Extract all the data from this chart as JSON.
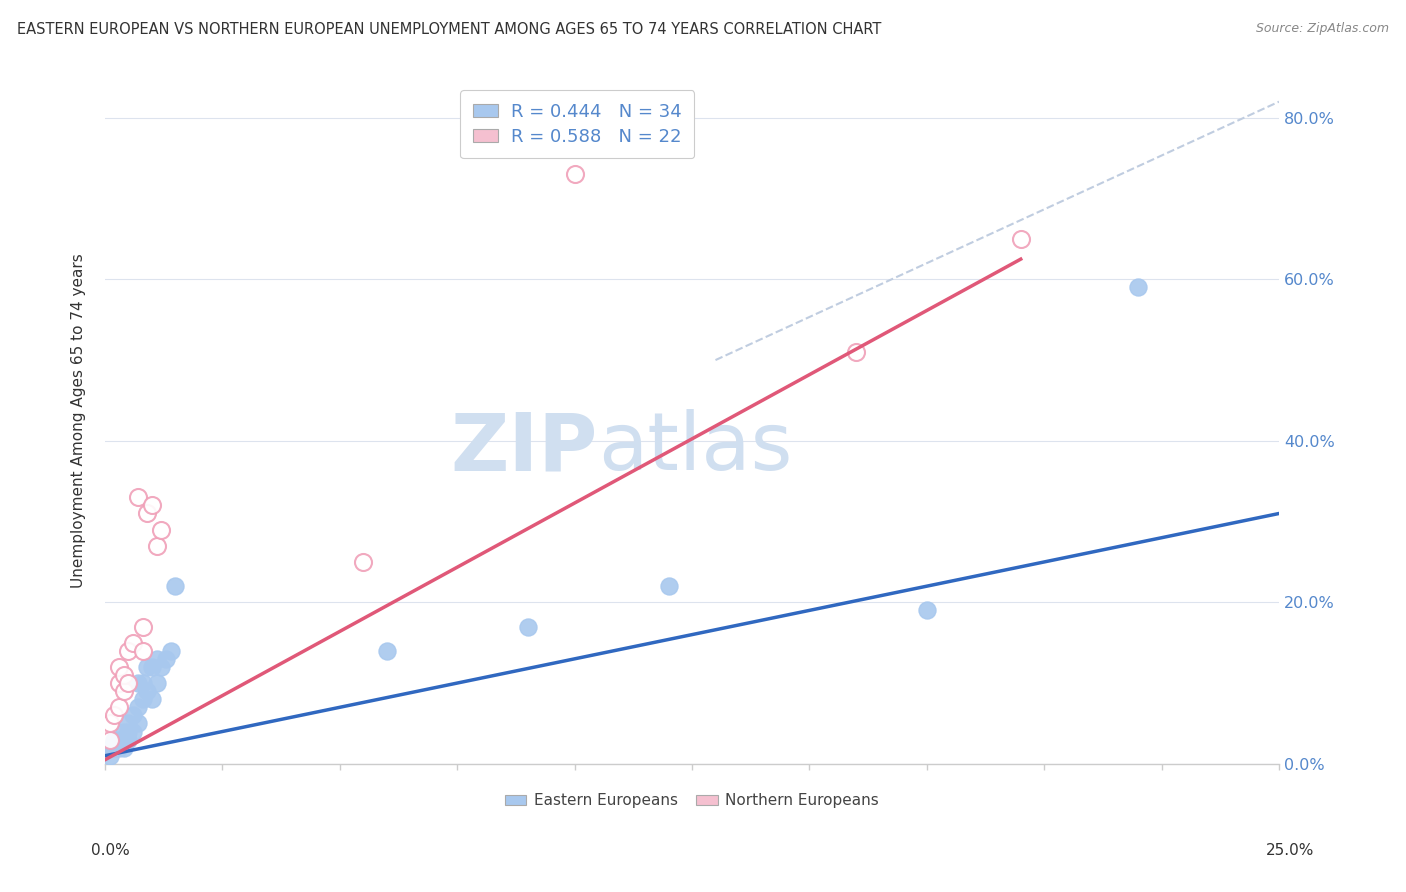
{
  "title": "EASTERN EUROPEAN VS NORTHERN EUROPEAN UNEMPLOYMENT AMONG AGES 65 TO 74 YEARS CORRELATION CHART",
  "source": "Source: ZipAtlas.com",
  "ylabel": "Unemployment Among Ages 65 to 74 years",
  "legend_blue_r": "R = 0.444",
  "legend_blue_n": "N = 34",
  "legend_pink_r": "R = 0.588",
  "legend_pink_n": "N = 22",
  "blue_fill_color": "#a8c8ee",
  "pink_fill_color": "#f5c0d0",
  "blue_edge_color": "#a8c8ee",
  "pink_edge_color": "#f0a0b8",
  "blue_line_color": "#3068c0",
  "pink_line_color": "#e05878",
  "watermark": "ZIPAtlas",
  "watermark_color": "#d0dff0",
  "blue_scatter_x": [
    0.001,
    0.001,
    0.002,
    0.002,
    0.003,
    0.003,
    0.004,
    0.004,
    0.004,
    0.005,
    0.005,
    0.005,
    0.006,
    0.006,
    0.007,
    0.007,
    0.007,
    0.008,
    0.008,
    0.009,
    0.009,
    0.01,
    0.01,
    0.011,
    0.011,
    0.012,
    0.013,
    0.014,
    0.015,
    0.06,
    0.09,
    0.12,
    0.175,
    0.22
  ],
  "blue_scatter_y": [
    0.01,
    0.02,
    0.02,
    0.03,
    0.02,
    0.03,
    0.02,
    0.03,
    0.04,
    0.03,
    0.04,
    0.05,
    0.04,
    0.06,
    0.05,
    0.07,
    0.1,
    0.08,
    0.1,
    0.09,
    0.12,
    0.08,
    0.12,
    0.1,
    0.13,
    0.12,
    0.13,
    0.14,
    0.22,
    0.14,
    0.17,
    0.22,
    0.19,
    0.59
  ],
  "pink_scatter_x": [
    0.001,
    0.001,
    0.002,
    0.003,
    0.003,
    0.003,
    0.004,
    0.004,
    0.005,
    0.005,
    0.006,
    0.007,
    0.008,
    0.008,
    0.009,
    0.01,
    0.011,
    0.012,
    0.055,
    0.1,
    0.16,
    0.195
  ],
  "pink_scatter_y": [
    0.03,
    0.05,
    0.06,
    0.07,
    0.1,
    0.12,
    0.09,
    0.11,
    0.1,
    0.14,
    0.15,
    0.33,
    0.14,
    0.17,
    0.31,
    0.32,
    0.27,
    0.29,
    0.25,
    0.73,
    0.51,
    0.65
  ],
  "blue_line_x": [
    0.0,
    0.25
  ],
  "blue_line_y": [
    0.01,
    0.31
  ],
  "pink_line_x": [
    0.0,
    0.195
  ],
  "pink_line_y": [
    0.005,
    0.625
  ],
  "diag_line_x": [
    0.13,
    0.25
  ],
  "diag_line_y": [
    0.5,
    0.82
  ],
  "xlim": [
    0.0,
    0.25
  ],
  "ylim": [
    0.0,
    0.85
  ],
  "right_ytick_vals": [
    0.0,
    0.2,
    0.4,
    0.6,
    0.8
  ]
}
